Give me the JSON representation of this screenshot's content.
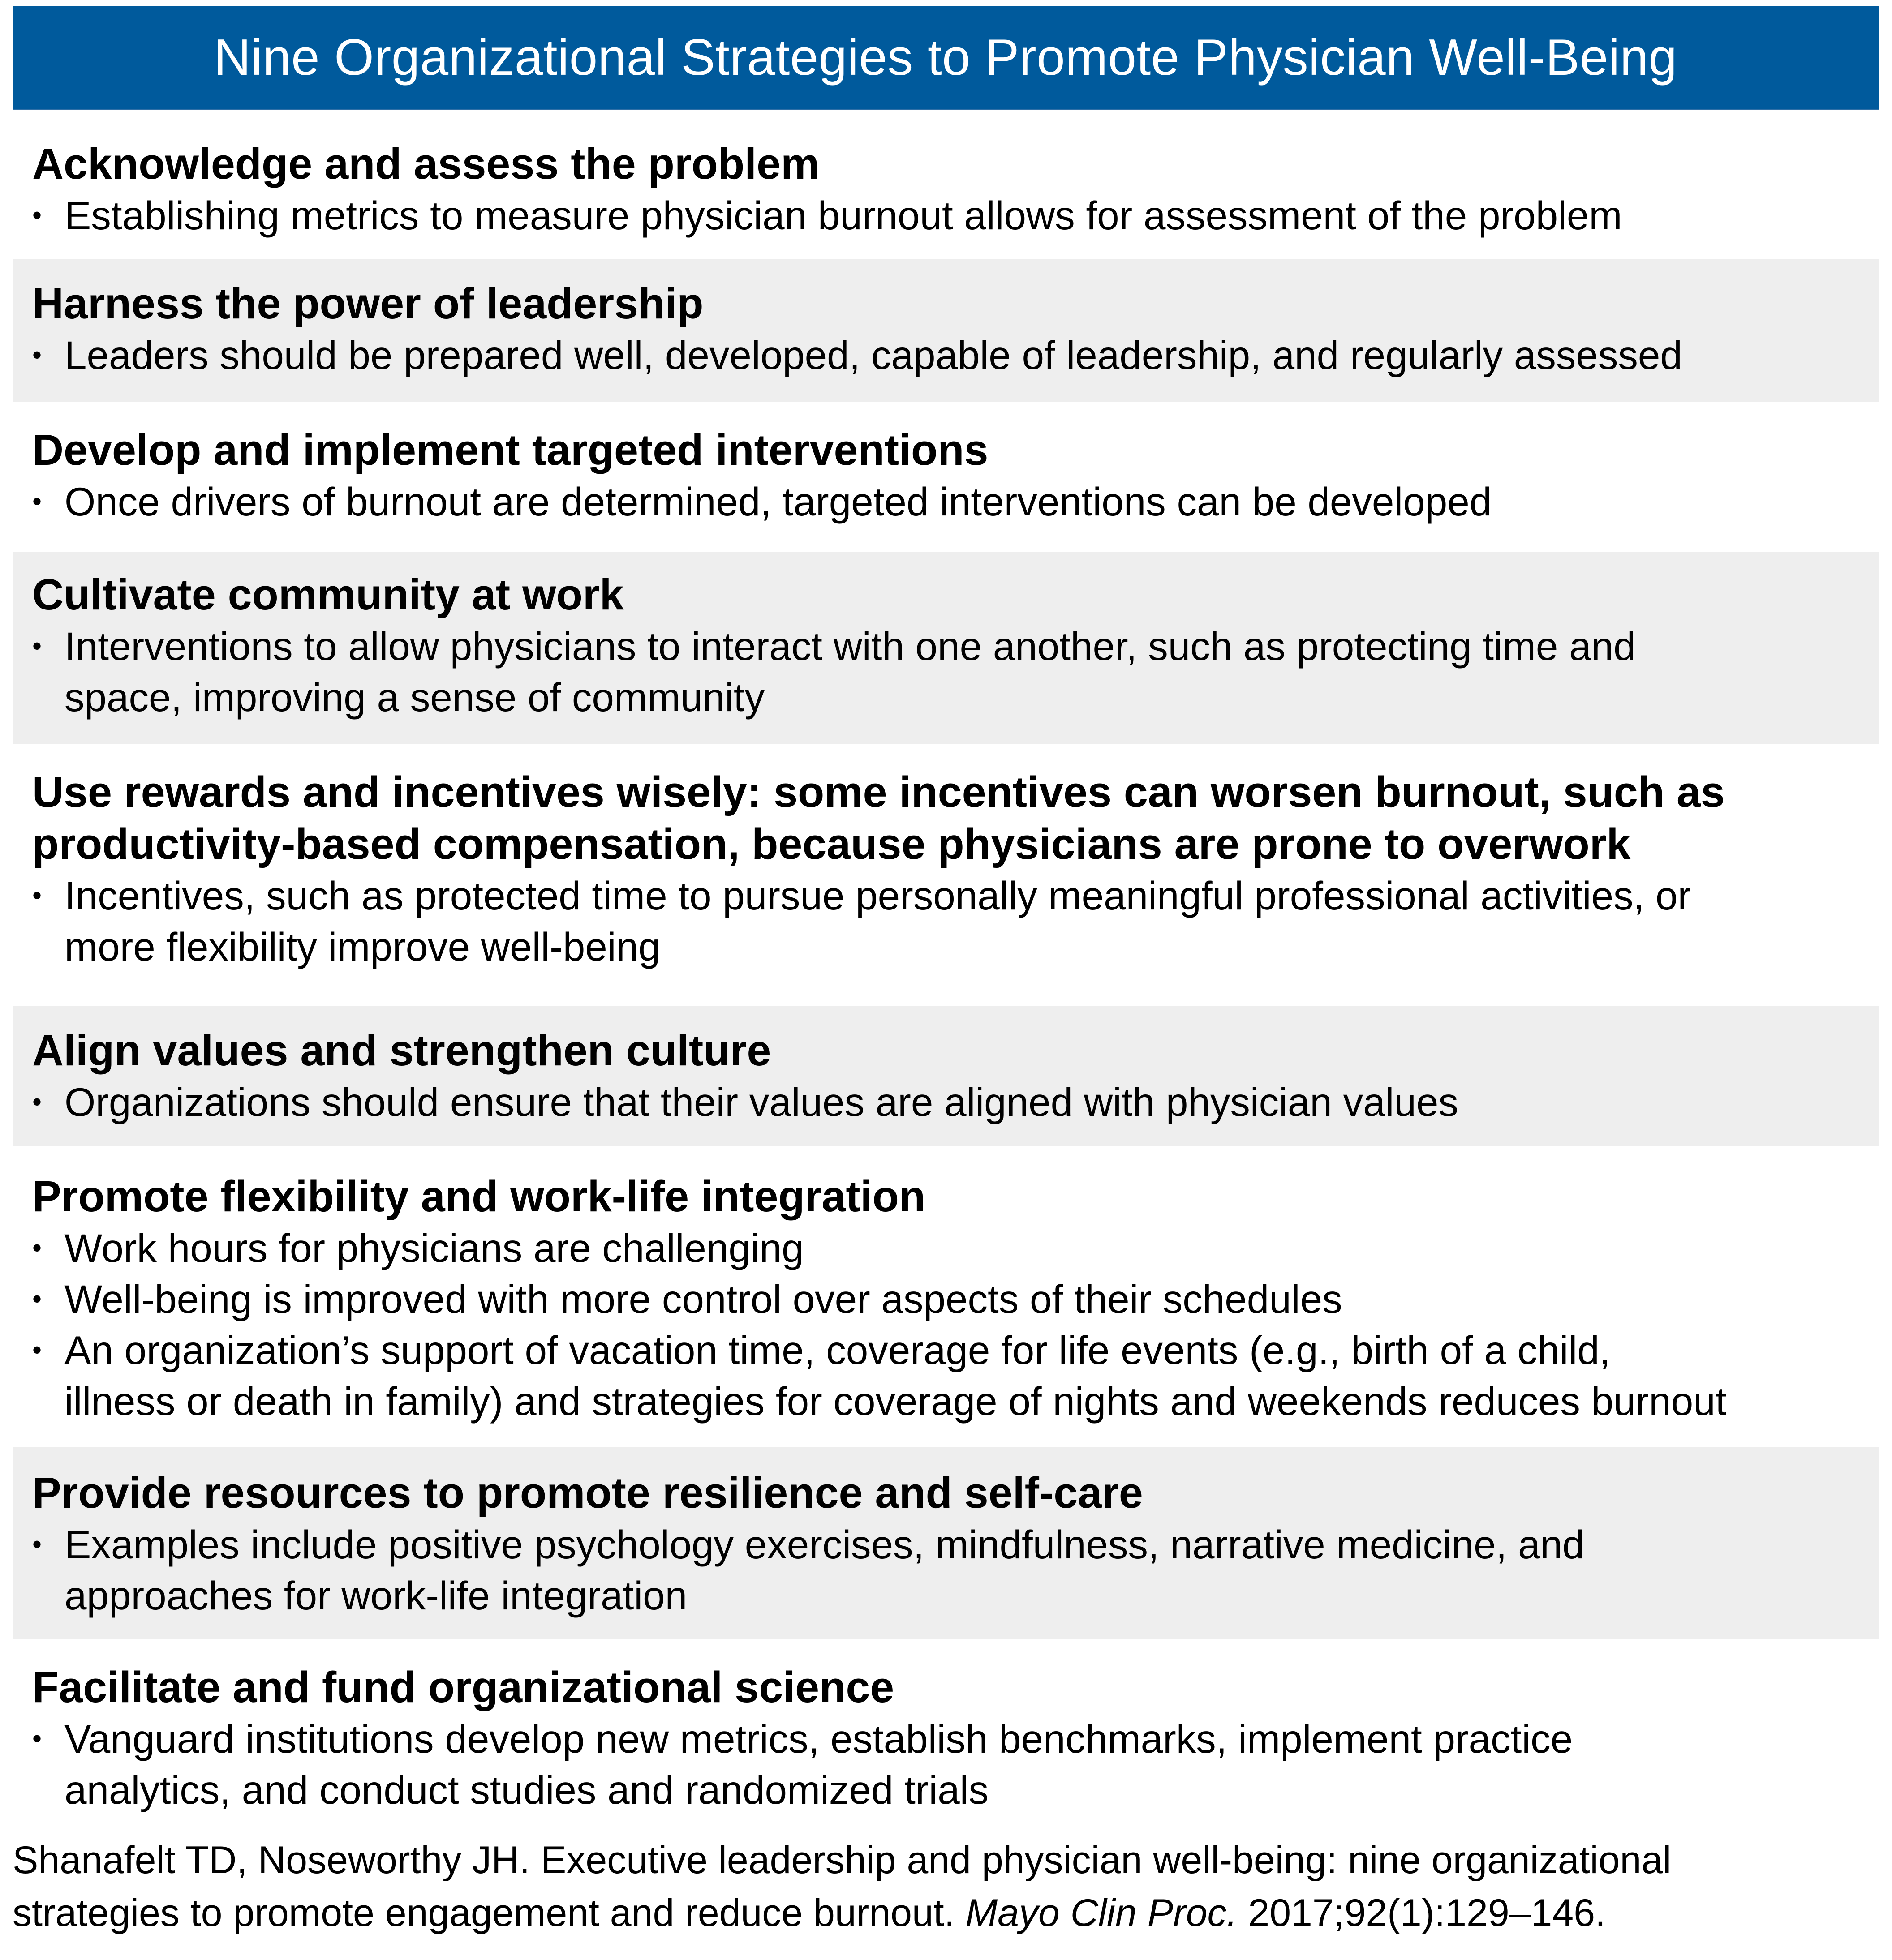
{
  "title": "Nine Organizational Strategies to Promote Physician Well-Being",
  "colors": {
    "banner": "#005a9c",
    "shade": "#eeeeee"
  },
  "strategies": [
    {
      "heading": "Acknowledge and assess the problem",
      "bullets": [
        [
          "Establishing metrics to measure physician burnout allows for assessment of the problem"
        ]
      ]
    },
    {
      "heading": "Harness the power of leadership",
      "bullets": [
        [
          "Leaders should be prepared well, developed, capable of leadership, and regularly assessed"
        ]
      ]
    },
    {
      "heading": "Develop and implement targeted interventions",
      "bullets": [
        [
          "Once drivers of burnout are determined, targeted interventions can be developed"
        ]
      ]
    },
    {
      "heading": "Cultivate community at work",
      "bullets": [
        [
          "Interventions to allow physicians to interact with one another, such as protecting time and",
          "space, improving a sense of community"
        ]
      ]
    },
    {
      "heading": [
        "Use rewards and incentives wisely: some incentives can worsen burnout, such as",
        "productivity-based compensation, because physicians are prone to overwork"
      ],
      "bullets": [
        [
          "Incentives, such as protected time to pursue personally meaningful professional activities, or",
          "more flexibility improve well-being"
        ]
      ]
    },
    {
      "heading": "Align values and strengthen culture",
      "bullets": [
        [
          "Organizations should ensure that their values are aligned with physician values"
        ]
      ]
    },
    {
      "heading": "Promote flexibility and work-life integration",
      "bullets": [
        [
          "Work hours for physicians are challenging"
        ],
        [
          "Well-being is improved with more control over aspects of their schedules"
        ],
        [
          "An organization’s support of vacation time, coverage for life events (e.g., birth of a child,",
          "illness or death in family) and strategies for coverage of nights and weekends reduces burnout"
        ]
      ]
    },
    {
      "heading": "Provide resources to promote resilience and self-care",
      "bullets": [
        [
          "Examples include positive psychology exercises, mindfulness, narrative medicine, and",
          "approaches for work-life integration"
        ]
      ]
    },
    {
      "heading": "Facilitate and fund organizational science",
      "bullets": [
        [
          "Vanguard institutions develop new metrics, establish benchmarks, implement practice",
          "analytics, and conduct studies and randomized trials"
        ]
      ]
    }
  ],
  "bullet_glyph": "•",
  "citation": {
    "line1": "Shanafelt TD, Noseworthy JH. Executive leadership and physician well-being: nine organizational",
    "line2_prefix": "strategies to promote engagement and reduce burnout. ",
    "journal": "Mayo Clin Proc.",
    "line2_suffix": " 2017;92(1):129–146."
  }
}
